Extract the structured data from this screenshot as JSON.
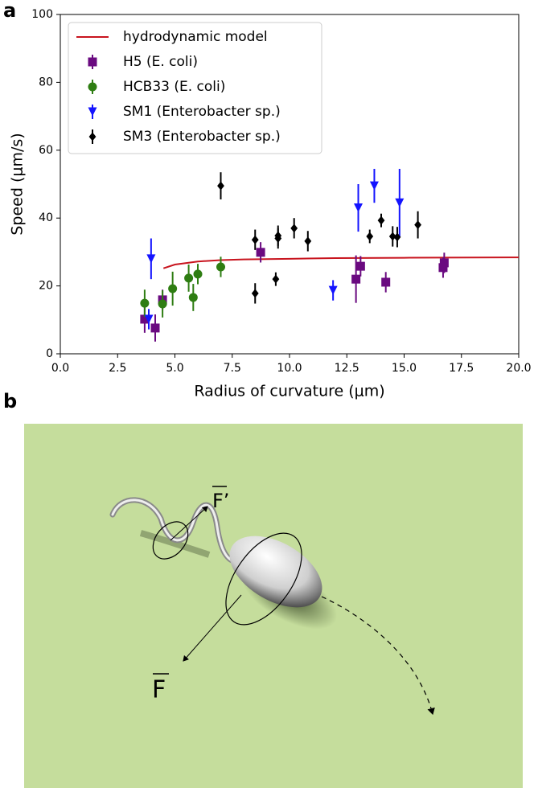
{
  "panel_labels": [
    "a",
    "b"
  ],
  "chart_data": {
    "type": "scatter",
    "xlabel": "Radius of curvature (μm)",
    "ylabel": "Speed (μm/s)",
    "xlim": [
      0,
      20
    ],
    "ylim": [
      0,
      100
    ],
    "xticks": [
      {
        "value": 0,
        "label": "0.0"
      },
      {
        "value": 2.5,
        "label": "2.5"
      },
      {
        "value": 5,
        "label": "5.0"
      },
      {
        "value": 7.5,
        "label": "7.5"
      },
      {
        "value": 10,
        "label": "10.0"
      },
      {
        "value": 12.5,
        "label": "12.5"
      },
      {
        "value": 15,
        "label": "15.0"
      },
      {
        "value": 17.5,
        "label": "17.5"
      },
      {
        "value": 20,
        "label": "20.0"
      }
    ],
    "yticks": [
      0,
      20,
      40,
      60,
      80,
      100
    ],
    "legend": "upper left",
    "series": [
      {
        "name": "hydrodynamic model",
        "color": "#c8141e",
        "style": "line",
        "x": [
          4.5,
          5,
          6,
          7,
          8,
          10,
          12,
          15,
          20
        ],
        "values": [
          25.2,
          26.3,
          27.2,
          27.6,
          27.8,
          28.0,
          28.2,
          28.3,
          28.4
        ]
      },
      {
        "name": "H5 (E. coli)",
        "color": "#6a0a80",
        "marker": "square",
        "x": [
          3.68,
          4.14,
          4.46,
          8.74,
          12.9,
          13.1,
          14.2,
          16.7,
          16.75
        ],
        "values": [
          10.2,
          7.6,
          15.9,
          29.9,
          22,
          25.8,
          21.1,
          25.4,
          26.8
        ],
        "errors": [
          4,
          4,
          3,
          3,
          7,
          3,
          3,
          3,
          3
        ]
      },
      {
        "name": "HCB33 (E. coli)",
        "color": "#2e7d12",
        "marker": "circle",
        "x": [
          3.68,
          4.46,
          4.9,
          5.6,
          5.8,
          6.0,
          7.0
        ],
        "values": [
          14.9,
          14.7,
          19.2,
          22.3,
          16.6,
          23.5,
          25.6
        ],
        "errors": [
          4,
          4,
          5,
          4,
          4,
          3,
          3
        ]
      },
      {
        "name": "SM1 (Enterobacter sp.)",
        "color": "#1414ff",
        "marker": "triangle",
        "x": [
          3.86,
          3.96,
          11.9,
          13.0,
          13.7,
          14.8
        ],
        "values": [
          10.2,
          28,
          18.7,
          43,
          49.5,
          44.5
        ],
        "errors": [
          3,
          6,
          3,
          7,
          5,
          10
        ]
      },
      {
        "name": "SM3 (Enterobacter sp.)",
        "color": "#000000",
        "marker": "diamond",
        "x": [
          7.0,
          8.5,
          8.5,
          9.4,
          9.5,
          9.5,
          10.2,
          10.8,
          13.5,
          14.0,
          14.5,
          14.7,
          15.6
        ],
        "values": [
          49.5,
          33.6,
          17.8,
          22,
          34.8,
          34,
          37,
          33.2,
          34.6,
          39.3,
          34.6,
          34.4,
          38
        ],
        "errors": [
          4,
          3,
          3,
          2,
          3,
          3,
          3,
          3,
          2,
          2,
          3,
          3,
          4
        ]
      }
    ]
  },
  "illustration": {
    "force_labels": [
      "F’",
      "F"
    ]
  }
}
